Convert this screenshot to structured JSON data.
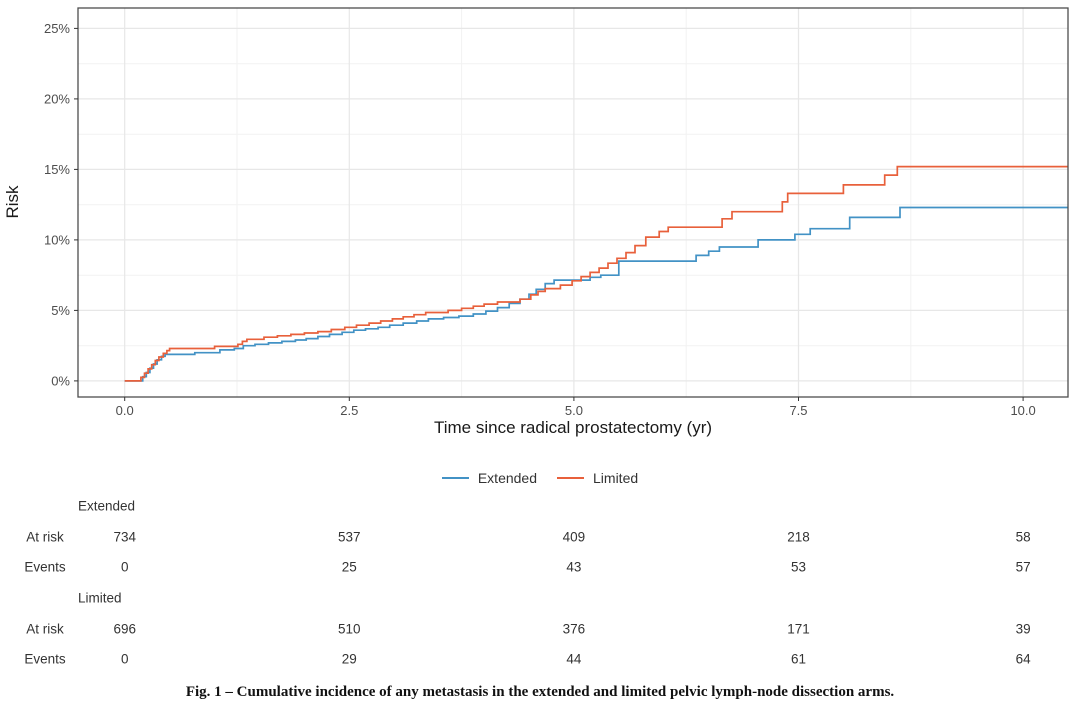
{
  "figure": {
    "caption": "Fig. 1 – Cumulative incidence of any metastasis in the extended and limited pelvic lymph-node dissection arms."
  },
  "chart_data": {
    "type": "line",
    "subtype": "step-cumulative-incidence",
    "title": "",
    "xlabel": "Time since radical prostatectomy (yr)",
    "ylabel": "Risk",
    "xlim": [
      -0.52,
      10.5
    ],
    "ylim": [
      -1.14,
      26.45
    ],
    "x_ticks": [
      0,
      2.5,
      5,
      7.5,
      10
    ],
    "x_tick_labels": [
      "0.0",
      "2.5",
      "5.0",
      "7.5",
      "10.0"
    ],
    "x_minor_ticks": [
      1.25,
      3.75,
      6.25,
      8.75
    ],
    "y_ticks": [
      0,
      5,
      10,
      15,
      20,
      25
    ],
    "y_tick_labels": [
      "0%",
      "5%",
      "10%",
      "15%",
      "20%",
      "25%"
    ],
    "y_minor_ticks": [
      2.5,
      7.5,
      12.5,
      17.5,
      22.5
    ],
    "grid": true,
    "legend_position": "bottom",
    "panel_border_color": "#4d4d4d",
    "grid_major_color": "#e7e7e7",
    "grid_minor_color": "#f2f2f2",
    "series": [
      {
        "name": "Extended",
        "color": "#4292c5",
        "unit": "percent",
        "points": [
          [
            0,
            0
          ],
          [
            0.2,
            0.3
          ],
          [
            0.24,
            0.6
          ],
          [
            0.28,
            0.9
          ],
          [
            0.32,
            1.2
          ],
          [
            0.36,
            1.5
          ],
          [
            0.41,
            1.75
          ],
          [
            0.45,
            1.88
          ],
          [
            0.78,
            2.0
          ],
          [
            1.06,
            2.2
          ],
          [
            1.22,
            2.3
          ],
          [
            1.32,
            2.5
          ],
          [
            1.45,
            2.6
          ],
          [
            1.6,
            2.7
          ],
          [
            1.75,
            2.8
          ],
          [
            1.9,
            2.9
          ],
          [
            2.02,
            3.0
          ],
          [
            2.15,
            3.15
          ],
          [
            2.28,
            3.3
          ],
          [
            2.42,
            3.45
          ],
          [
            2.55,
            3.6
          ],
          [
            2.68,
            3.7
          ],
          [
            2.82,
            3.8
          ],
          [
            2.95,
            3.95
          ],
          [
            3.1,
            4.1
          ],
          [
            3.25,
            4.25
          ],
          [
            3.38,
            4.4
          ],
          [
            3.55,
            4.5
          ],
          [
            3.72,
            4.6
          ],
          [
            3.88,
            4.75
          ],
          [
            4.02,
            4.95
          ],
          [
            4.15,
            5.2
          ],
          [
            4.28,
            5.5
          ],
          [
            4.4,
            5.8
          ],
          [
            4.5,
            6.15
          ],
          [
            4.58,
            6.5
          ],
          [
            4.68,
            6.9
          ],
          [
            4.78,
            7.15
          ],
          [
            5.18,
            7.35
          ],
          [
            5.3,
            7.5
          ],
          [
            5.5,
            8.5
          ],
          [
            6.36,
            8.9
          ],
          [
            6.5,
            9.2
          ],
          [
            6.62,
            9.5
          ],
          [
            7.05,
            10.0
          ],
          [
            7.46,
            10.4
          ],
          [
            7.63,
            10.8
          ],
          [
            8.07,
            11.6
          ],
          [
            8.63,
            12.3
          ],
          [
            10.5,
            12.3
          ]
        ]
      },
      {
        "name": "Limited",
        "color": "#e8603b",
        "unit": "percent",
        "points": [
          [
            0,
            0
          ],
          [
            0.18,
            0.25
          ],
          [
            0.22,
            0.55
          ],
          [
            0.26,
            0.85
          ],
          [
            0.3,
            1.15
          ],
          [
            0.34,
            1.45
          ],
          [
            0.38,
            1.7
          ],
          [
            0.43,
            1.95
          ],
          [
            0.47,
            2.15
          ],
          [
            0.5,
            2.3
          ],
          [
            1.0,
            2.45
          ],
          [
            1.26,
            2.6
          ],
          [
            1.31,
            2.8
          ],
          [
            1.36,
            2.95
          ],
          [
            1.55,
            3.1
          ],
          [
            1.7,
            3.2
          ],
          [
            1.85,
            3.3
          ],
          [
            2.0,
            3.4
          ],
          [
            2.15,
            3.5
          ],
          [
            2.3,
            3.65
          ],
          [
            2.45,
            3.8
          ],
          [
            2.58,
            3.95
          ],
          [
            2.72,
            4.1
          ],
          [
            2.85,
            4.25
          ],
          [
            2.98,
            4.4
          ],
          [
            3.1,
            4.55
          ],
          [
            3.22,
            4.7
          ],
          [
            3.35,
            4.85
          ],
          [
            3.6,
            5.0
          ],
          [
            3.75,
            5.15
          ],
          [
            3.88,
            5.3
          ],
          [
            4.0,
            5.45
          ],
          [
            4.15,
            5.6
          ],
          [
            4.4,
            5.8
          ],
          [
            4.52,
            6.1
          ],
          [
            4.6,
            6.35
          ],
          [
            4.68,
            6.55
          ],
          [
            4.85,
            6.8
          ],
          [
            4.98,
            7.1
          ],
          [
            5.08,
            7.4
          ],
          [
            5.18,
            7.7
          ],
          [
            5.28,
            8.0
          ],
          [
            5.38,
            8.35
          ],
          [
            5.48,
            8.7
          ],
          [
            5.58,
            9.1
          ],
          [
            5.68,
            9.6
          ],
          [
            5.8,
            10.2
          ],
          [
            5.95,
            10.6
          ],
          [
            6.05,
            10.9
          ],
          [
            6.65,
            11.5
          ],
          [
            6.76,
            12.0
          ],
          [
            7.32,
            12.7
          ],
          [
            7.38,
            13.3
          ],
          [
            8.0,
            13.9
          ],
          [
            8.46,
            14.6
          ],
          [
            8.6,
            15.2
          ],
          [
            10.5,
            15.2
          ]
        ]
      }
    ]
  },
  "risk_table": {
    "time_points": [
      0,
      2.5,
      5,
      7.5,
      10
    ],
    "groups": [
      {
        "name": "Extended",
        "rows": [
          {
            "label": "At risk",
            "values": [
              "734",
              "537",
              "409",
              "218",
              "58"
            ]
          },
          {
            "label": "Events",
            "values": [
              "0",
              "25",
              "43",
              "53",
              "57"
            ]
          }
        ]
      },
      {
        "name": "Limited",
        "rows": [
          {
            "label": "At risk",
            "values": [
              "696",
              "510",
              "376",
              "171",
              "39"
            ]
          },
          {
            "label": "Events",
            "values": [
              "0",
              "29",
              "44",
              "61",
              "64"
            ]
          }
        ]
      }
    ]
  }
}
